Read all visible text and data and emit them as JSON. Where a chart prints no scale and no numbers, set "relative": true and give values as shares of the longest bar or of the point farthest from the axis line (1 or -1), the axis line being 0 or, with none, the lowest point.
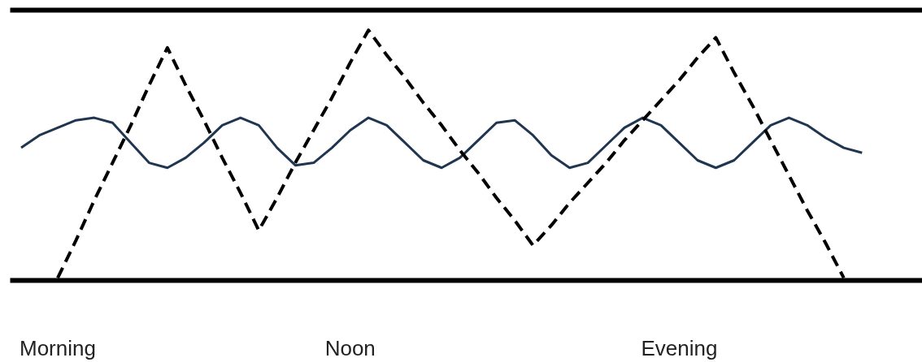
{
  "chart_data": {
    "type": "line",
    "relative": true,
    "categories": [
      null,
      null,
      "Morning",
      null,
      null,
      null,
      null,
      null,
      null,
      null,
      null,
      null,
      null,
      null,
      null,
      null,
      null,
      null,
      "Noon",
      null,
      null,
      null,
      null,
      null,
      null,
      null,
      null,
      null,
      null,
      null,
      null,
      null,
      null,
      null,
      null,
      null,
      "Evening",
      null,
      null,
      null,
      null,
      null,
      null,
      null,
      null,
      null,
      null
    ],
    "series": [
      {
        "color": "#1f3550",
        "line_style": "solid",
        "values": [
          0.53,
          0.58,
          0.61,
          0.64,
          0.65,
          0.63,
          0.55,
          0.47,
          0.45,
          0.49,
          0.55,
          0.62,
          0.65,
          0.62,
          0.53,
          0.46,
          0.47,
          0.53,
          0.6,
          0.65,
          0.62,
          0.55,
          0.48,
          0.45,
          0.49,
          0.56,
          0.63,
          0.64,
          0.58,
          0.5,
          0.45,
          0.47,
          0.54,
          0.61,
          0.65,
          0.62,
          0.55,
          0.48,
          0.45,
          0.48,
          0.55,
          0.62,
          0.65,
          0.62,
          0.57,
          0.53,
          0.51
        ]
      },
      {
        "color": "#000000",
        "line_style": "dashed",
        "values": [
          null,
          null,
          0.01,
          0.16,
          0.32,
          0.47,
          0.62,
          0.78,
          0.93,
          0.78,
          0.64,
          0.49,
          0.35,
          0.2,
          0.33,
          0.47,
          0.6,
          0.73,
          0.87,
          1.0,
          0.9,
          0.81,
          0.71,
          0.62,
          0.52,
          0.43,
          0.33,
          0.24,
          0.14,
          0.22,
          0.31,
          0.39,
          0.47,
          0.56,
          0.64,
          0.72,
          0.8,
          0.89,
          0.97,
          0.83,
          0.7,
          0.56,
          0.42,
          0.28,
          0.15,
          0.01,
          null
        ]
      }
    ]
  }
}
